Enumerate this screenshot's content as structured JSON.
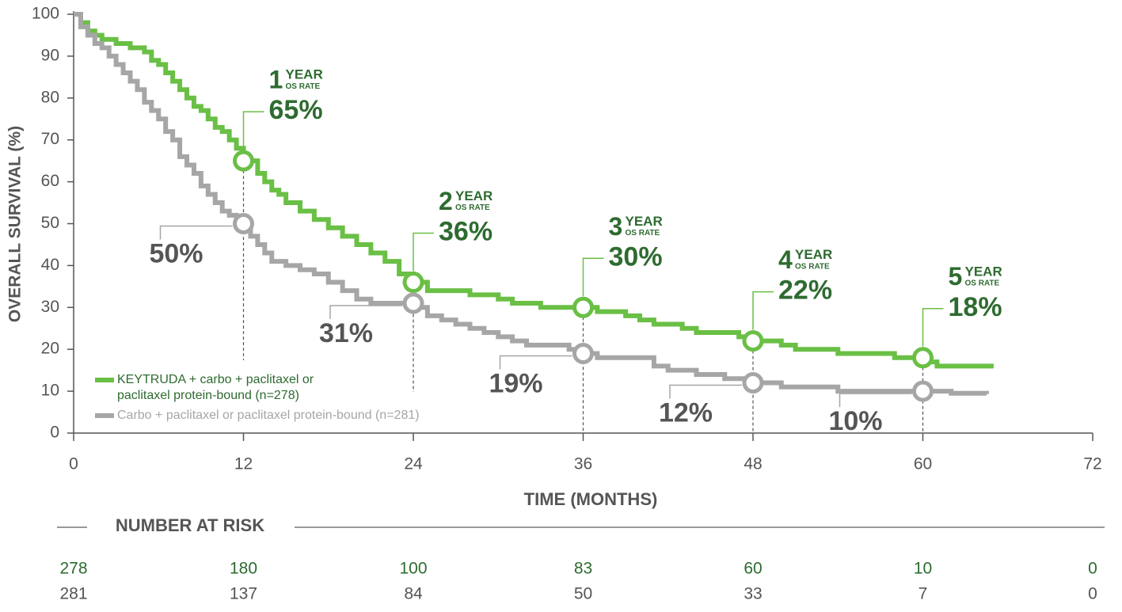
{
  "chart_data": {
    "type": "step",
    "x_label": "TIME (MONTHS)",
    "y_label": "OVERALL SURVIVAL (%)",
    "xlim": [
      0,
      72
    ],
    "xticks": [
      0,
      12,
      24,
      36,
      48,
      60,
      72
    ],
    "ylim": [
      0,
      100
    ],
    "yticks": [
      0,
      10,
      20,
      30,
      40,
      50,
      60,
      70,
      80,
      90,
      100
    ],
    "landmark_unit": "YEAR",
    "landmark_sub": "OS RATE",
    "landmark_years": [
      1,
      2,
      3,
      4,
      5
    ],
    "series": [
      {
        "name": "KEYTRUDA + carbo + paclitaxel or paclitaxel protein-bound (n=278)",
        "color": "#6abf45",
        "label_color": "#2e6b30",
        "x": [
          0,
          0.5,
          1,
          1.5,
          2,
          3,
          4,
          5,
          5.5,
          6,
          6.5,
          7,
          7.5,
          8,
          8.5,
          9,
          9.5,
          10,
          10.5,
          11,
          11.5,
          12,
          13,
          13.5,
          14,
          14.5,
          15,
          16,
          17,
          18,
          19,
          20,
          21,
          22,
          23,
          24,
          25,
          27,
          28,
          30,
          31,
          33,
          36,
          37,
          39,
          40,
          41,
          43,
          44,
          47,
          48,
          50,
          51,
          54,
          58,
          60.5,
          61,
          65
        ],
        "values": [
          100,
          98,
          96,
          95,
          94,
          93,
          92,
          91,
          89,
          88,
          86,
          84,
          82,
          80,
          78,
          77,
          75,
          73,
          72,
          70,
          68,
          65,
          62,
          60,
          58,
          57,
          55,
          53,
          51,
          49,
          47,
          45,
          43,
          41,
          38,
          36,
          34,
          34,
          33,
          32,
          31,
          30,
          30,
          29,
          28,
          27,
          26,
          25,
          24,
          23,
          22,
          21,
          20,
          19,
          18,
          17,
          16,
          16
        ],
        "landmarks": {
          "x": [
            12,
            24,
            36,
            48,
            60
          ],
          "values": [
            65,
            36,
            30,
            22,
            18
          ],
          "value_labels": [
            "65%",
            "36%",
            "30%",
            "22%",
            "18%"
          ]
        }
      },
      {
        "name": "Carbo + paclitaxel or paclitaxel protein-bound (n=281)",
        "color": "#a6a6a6",
        "label_color": "#555555",
        "x": [
          0,
          0.5,
          1,
          1.5,
          2,
          2.5,
          3,
          3.5,
          4,
          4.5,
          5,
          5.5,
          6,
          6.5,
          7,
          7.5,
          8,
          8.5,
          9,
          9.5,
          10,
          10.5,
          11,
          11.5,
          12.5,
          13,
          13.5,
          14,
          15,
          16,
          17,
          18,
          19,
          20,
          21,
          24,
          25,
          26,
          27,
          28,
          29,
          30,
          31,
          32,
          35,
          36,
          37,
          40,
          41,
          42,
          44,
          46,
          48,
          50,
          54,
          62,
          64.5
        ],
        "values": [
          100,
          97,
          95,
          93,
          92,
          90,
          88,
          86,
          84,
          82,
          79,
          77,
          75,
          72,
          70,
          66,
          64,
          62,
          59,
          57,
          55,
          53,
          52,
          50,
          47,
          45,
          43,
          41,
          40,
          39,
          38,
          36,
          34,
          32,
          31,
          30,
          28,
          27,
          26,
          25,
          24,
          23,
          22,
          21,
          20,
          19,
          18,
          18,
          16,
          15,
          14,
          13,
          12,
          11,
          10,
          9.5,
          9.3
        ],
        "landmarks": {
          "x": [
            12,
            24,
            36,
            48,
            60
          ],
          "values": [
            50,
            31,
            19,
            12,
            10
          ],
          "value_labels": [
            "50%",
            "31%",
            "19%",
            "12%",
            "10%"
          ]
        }
      }
    ],
    "risk_table": {
      "title": "NUMBER AT RISK",
      "rows": [
        {
          "color": "#2e6b30",
          "values": [
            278,
            180,
            100,
            83,
            60,
            10,
            0
          ]
        },
        {
          "color": "#555555",
          "values": [
            281,
            137,
            84,
            50,
            33,
            7,
            0
          ]
        }
      ]
    }
  }
}
